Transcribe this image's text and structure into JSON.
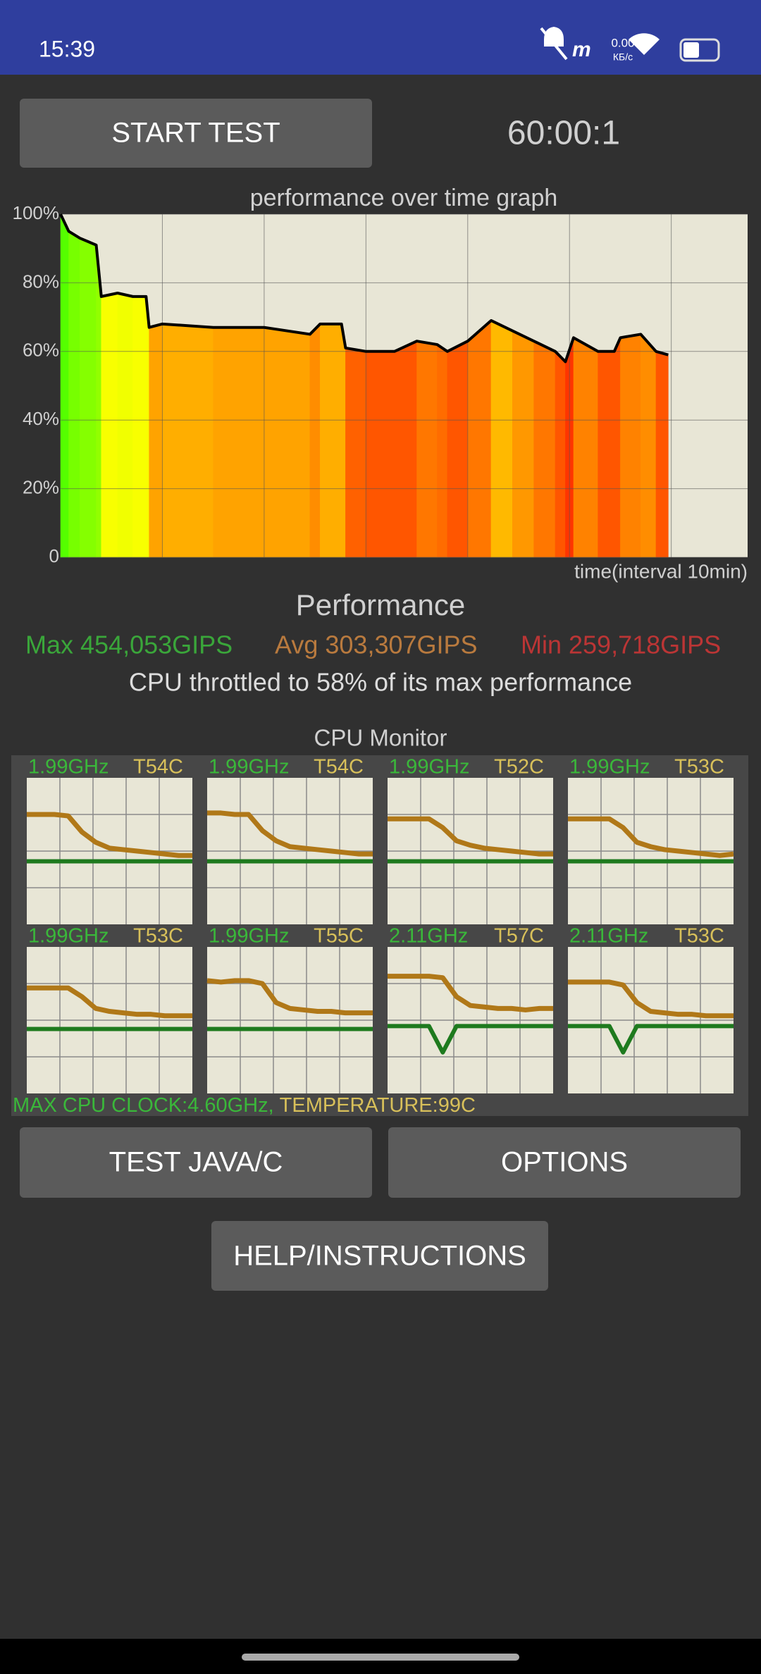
{
  "status_bar": {
    "time": "15:39",
    "net_speed": "0.00",
    "net_unit": "КБ/с"
  },
  "controls": {
    "start_button": "START TEST",
    "timer": "60:00:1"
  },
  "chart_data": {
    "type": "line",
    "title": "performance over time graph",
    "x_label": "time(interval 10min)",
    "x": [
      0,
      0.8,
      1.9,
      3.5,
      4,
      5.6,
      7.1,
      8.4,
      8.7,
      10,
      15,
      19,
      20,
      24.5,
      25.5,
      27.6,
      28,
      30,
      32.8,
      35,
      37,
      38,
      40,
      42.3,
      44.4,
      46.5,
      48.6,
      49.6,
      50.4,
      52.8,
      54.4,
      55,
      57,
      58.5,
      59.7
    ],
    "values": [
      100,
      95,
      93,
      91,
      76,
      77,
      76,
      76,
      67,
      68,
      67,
      67,
      67,
      65,
      68,
      68,
      61,
      60,
      60,
      63,
      62,
      60,
      63,
      69,
      66,
      63,
      60,
      57,
      64,
      60,
      60,
      64,
      65,
      60,
      59
    ],
    "color": "#000000",
    "xlim": [
      0,
      67.5
    ],
    "x_grid_interval": 10,
    "ylim": [
      0,
      100
    ],
    "yticks": [
      0,
      {
        "value": 20,
        "label": "20%"
      },
      {
        "value": 40,
        "label": "40%"
      },
      {
        "value": 60,
        "label": "60%"
      },
      {
        "value": 80,
        "label": "80%"
      },
      {
        "value": 100,
        "label": "100%"
      }
    ],
    "grid": true
  },
  "performance": {
    "heading": "Performance",
    "max": "Max 454,053GIPS",
    "avg": "Avg 303,307GIPS",
    "min": "Min 259,718GIPS",
    "summary": "CPU throttled to 58% of its max performance"
  },
  "cpu_monitor": {
    "title": "CPU Monitor",
    "graph_range": [
      0,
      100
    ],
    "cores": [
      {
        "freq": "1.99GHz",
        "temp": "T54C",
        "temp_trace": [
          75,
          75,
          75,
          74,
          63,
          56,
          52,
          51,
          50,
          49,
          48,
          47,
          47
        ],
        "clock_trace": [
          43,
          43,
          43,
          43,
          43,
          43,
          43,
          43,
          43,
          43,
          43,
          43,
          43
        ]
      },
      {
        "freq": "1.99GHz",
        "temp": "T54C",
        "temp_trace": [
          76,
          76,
          75,
          75,
          64,
          57,
          53,
          52,
          51,
          50,
          49,
          48,
          48
        ],
        "clock_trace": [
          43,
          43,
          43,
          43,
          43,
          43,
          43,
          43,
          43,
          43,
          43,
          43,
          43
        ]
      },
      {
        "freq": "1.99GHz",
        "temp": "T52C",
        "temp_trace": [
          72,
          72,
          72,
          72,
          66,
          57,
          54,
          52,
          51,
          50,
          49,
          48,
          48
        ],
        "clock_trace": [
          43,
          43,
          43,
          43,
          43,
          43,
          43,
          43,
          43,
          43,
          43,
          43,
          43
        ]
      },
      {
        "freq": "1.99GHz",
        "temp": "T53C",
        "temp_trace": [
          72,
          72,
          72,
          72,
          66,
          56,
          53,
          51,
          50,
          49,
          48,
          47,
          48
        ],
        "clock_trace": [
          43,
          43,
          43,
          43,
          43,
          43,
          43,
          43,
          43,
          43,
          43,
          43,
          43
        ]
      },
      {
        "freq": "1.99GHz",
        "temp": "T53C",
        "temp_trace": [
          72,
          72,
          72,
          72,
          66,
          58,
          56,
          55,
          54,
          54,
          53,
          53,
          53
        ],
        "clock_trace": [
          44,
          44,
          44,
          44,
          44,
          44,
          44,
          44,
          44,
          44,
          44,
          44,
          44
        ]
      },
      {
        "freq": "1.99GHz",
        "temp": "T55C",
        "temp_trace": [
          77,
          76,
          77,
          77,
          75,
          62,
          58,
          57,
          56,
          56,
          55,
          55,
          55
        ],
        "clock_trace": [
          44,
          44,
          44,
          44,
          44,
          44,
          44,
          44,
          44,
          44,
          44,
          44,
          44
        ]
      },
      {
        "freq": "2.11GHz",
        "temp": "T57C",
        "temp_trace": [
          80,
          80,
          80,
          80,
          79,
          66,
          60,
          59,
          58,
          58,
          57,
          58,
          58
        ],
        "clock_trace": [
          46,
          46,
          46,
          46,
          28,
          46,
          46,
          46,
          46,
          46,
          46,
          46,
          46
        ]
      },
      {
        "freq": "2.11GHz",
        "temp": "T53C",
        "temp_trace": [
          76,
          76,
          76,
          76,
          74,
          62,
          56,
          55,
          54,
          54,
          53,
          53,
          53
        ],
        "clock_trace": [
          46,
          46,
          46,
          46,
          28,
          46,
          46,
          46,
          46,
          46,
          46,
          46,
          46
        ]
      }
    ],
    "max_clock": "MAX CPU CLOCK:4.60GHz,",
    "max_temp": "TEMPERATURE:99C"
  },
  "buttons": {
    "test": "TEST JAVA/C",
    "options": "OPTIONS",
    "help": "HELP/INSTRUCTIONS"
  }
}
